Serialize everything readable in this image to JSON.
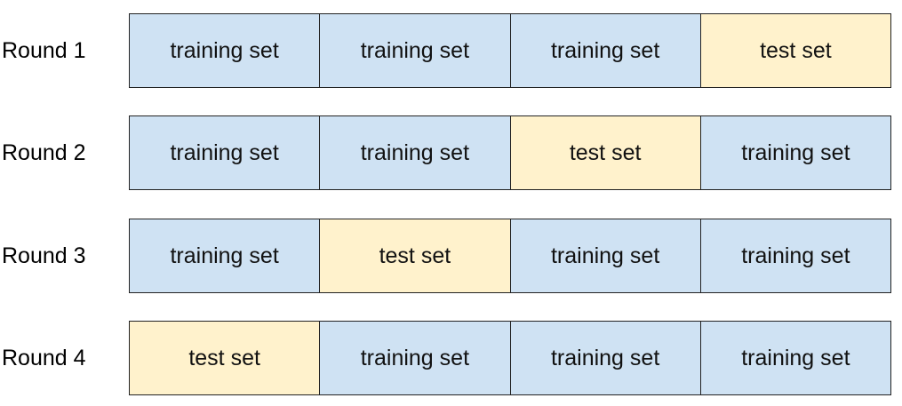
{
  "colors": {
    "training": "#cfe2f3",
    "test": "#fff2cc"
  },
  "rounds": [
    {
      "label": "Round 1",
      "cells": [
        {
          "text": "training set",
          "kind": "training"
        },
        {
          "text": "training set",
          "kind": "training"
        },
        {
          "text": "training set",
          "kind": "training"
        },
        {
          "text": "test set",
          "kind": "test"
        }
      ]
    },
    {
      "label": "Round 2",
      "cells": [
        {
          "text": "training set",
          "kind": "training"
        },
        {
          "text": "training set",
          "kind": "training"
        },
        {
          "text": "test set",
          "kind": "test"
        },
        {
          "text": "training set",
          "kind": "training"
        }
      ]
    },
    {
      "label": "Round 3",
      "cells": [
        {
          "text": "training set",
          "kind": "training"
        },
        {
          "text": "test set",
          "kind": "test"
        },
        {
          "text": "training set",
          "kind": "training"
        },
        {
          "text": "training set",
          "kind": "training"
        }
      ]
    },
    {
      "label": "Round 4",
      "cells": [
        {
          "text": "test set",
          "kind": "test"
        },
        {
          "text": "training set",
          "kind": "training"
        },
        {
          "text": "training set",
          "kind": "training"
        },
        {
          "text": "training set",
          "kind": "training"
        }
      ]
    }
  ]
}
